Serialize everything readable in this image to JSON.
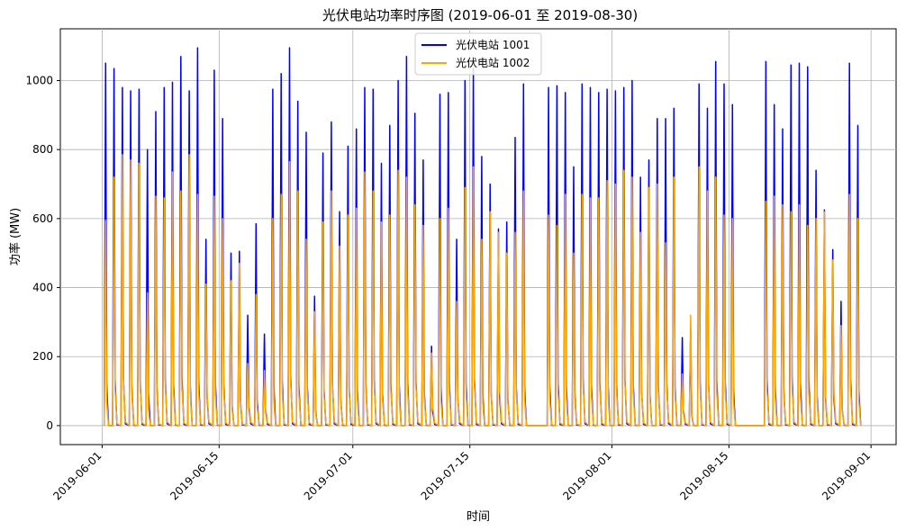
{
  "chart_data": {
    "type": "line",
    "title": "光伏电站功率时序图 (2019-06-01 至 2019-08-30)",
    "xlabel": "时间",
    "ylabel": "功率 (MW)",
    "x_range": [
      "2019-05-27",
      "2019-09-04"
    ],
    "ylim": [
      -55,
      1150
    ],
    "x_ticks": [
      "2019-06-01",
      "2019-06-15",
      "2019-07-01",
      "2019-07-15",
      "2019-08-01",
      "2019-08-15",
      "2019-09-01"
    ],
    "y_ticks": [
      0,
      200,
      400,
      600,
      800,
      1000
    ],
    "grid": true,
    "legend_position": "top-center",
    "series": [
      {
        "name": "光伏电站 1001",
        "color": "#0000ff",
        "daily_peaks": [
          {
            "date": "2019-06-01",
            "peak": 1050
          },
          {
            "date": "2019-06-02",
            "peak": 1035
          },
          {
            "date": "2019-06-03",
            "peak": 980
          },
          {
            "date": "2019-06-04",
            "peak": 970
          },
          {
            "date": "2019-06-05",
            "peak": 975
          },
          {
            "date": "2019-06-06",
            "peak": 800
          },
          {
            "date": "2019-06-07",
            "peak": 910
          },
          {
            "date": "2019-06-08",
            "peak": 980
          },
          {
            "date": "2019-06-09",
            "peak": 995
          },
          {
            "date": "2019-06-10",
            "peak": 1070
          },
          {
            "date": "2019-06-11",
            "peak": 970
          },
          {
            "date": "2019-06-12",
            "peak": 1095
          },
          {
            "date": "2019-06-13",
            "peak": 540
          },
          {
            "date": "2019-06-14",
            "peak": 1030
          },
          {
            "date": "2019-06-15",
            "peak": 890
          },
          {
            "date": "2019-06-16",
            "peak": 500
          },
          {
            "date": "2019-06-17",
            "peak": 505
          },
          {
            "date": "2019-06-18",
            "peak": 320
          },
          {
            "date": "2019-06-19",
            "peak": 585
          },
          {
            "date": "2019-06-20",
            "peak": 265
          },
          {
            "date": "2019-06-21",
            "peak": 975
          },
          {
            "date": "2019-06-22",
            "peak": 1020
          },
          {
            "date": "2019-06-23",
            "peak": 1095
          },
          {
            "date": "2019-06-24",
            "peak": 940
          },
          {
            "date": "2019-06-25",
            "peak": 850
          },
          {
            "date": "2019-06-26",
            "peak": 375
          },
          {
            "date": "2019-06-27",
            "peak": 790
          },
          {
            "date": "2019-06-28",
            "peak": 880
          },
          {
            "date": "2019-06-29",
            "peak": 620
          },
          {
            "date": "2019-06-30",
            "peak": 810
          },
          {
            "date": "2019-07-01",
            "peak": 860
          },
          {
            "date": "2019-07-02",
            "peak": 980
          },
          {
            "date": "2019-07-03",
            "peak": 975
          },
          {
            "date": "2019-07-04",
            "peak": 760
          },
          {
            "date": "2019-07-05",
            "peak": 870
          },
          {
            "date": "2019-07-06",
            "peak": 1000
          },
          {
            "date": "2019-07-07",
            "peak": 1070
          },
          {
            "date": "2019-07-08",
            "peak": 905
          },
          {
            "date": "2019-07-09",
            "peak": 770
          },
          {
            "date": "2019-07-10",
            "peak": 230
          },
          {
            "date": "2019-07-11",
            "peak": 960
          },
          {
            "date": "2019-07-12",
            "peak": 965
          },
          {
            "date": "2019-07-13",
            "peak": 540
          },
          {
            "date": "2019-07-14",
            "peak": 1000
          },
          {
            "date": "2019-07-15",
            "peak": 1035
          },
          {
            "date": "2019-07-16",
            "peak": 780
          },
          {
            "date": "2019-07-17",
            "peak": 700
          },
          {
            "date": "2019-07-18",
            "peak": 570
          },
          {
            "date": "2019-07-19",
            "peak": 590
          },
          {
            "date": "2019-07-20",
            "peak": 835
          },
          {
            "date": "2019-07-21",
            "peak": 990
          },
          {
            "date": "2019-07-22",
            "peak": null
          },
          {
            "date": "2019-07-23",
            "peak": null
          },
          {
            "date": "2019-07-24",
            "peak": 980
          },
          {
            "date": "2019-07-25",
            "peak": 985
          },
          {
            "date": "2019-07-26",
            "peak": 965
          },
          {
            "date": "2019-07-27",
            "peak": 750
          },
          {
            "date": "2019-07-28",
            "peak": 990
          },
          {
            "date": "2019-07-29",
            "peak": 980
          },
          {
            "date": "2019-07-30",
            "peak": 965
          },
          {
            "date": "2019-07-31",
            "peak": 975
          },
          {
            "date": "2019-08-01",
            "peak": 970
          },
          {
            "date": "2019-08-02",
            "peak": 980
          },
          {
            "date": "2019-08-03",
            "peak": 1000
          },
          {
            "date": "2019-08-04",
            "peak": 720
          },
          {
            "date": "2019-08-05",
            "peak": 770
          },
          {
            "date": "2019-08-06",
            "peak": 890
          },
          {
            "date": "2019-08-07",
            "peak": 890
          },
          {
            "date": "2019-08-08",
            "peak": 920
          },
          {
            "date": "2019-08-09",
            "peak": 255
          },
          {
            "date": "2019-08-10",
            "peak": 280
          },
          {
            "date": "2019-08-11",
            "peak": 990
          },
          {
            "date": "2019-08-12",
            "peak": 920
          },
          {
            "date": "2019-08-13",
            "peak": 1055
          },
          {
            "date": "2019-08-14",
            "peak": 990
          },
          {
            "date": "2019-08-15",
            "peak": 930
          },
          {
            "date": "2019-08-16",
            "peak": null
          },
          {
            "date": "2019-08-17",
            "peak": null
          },
          {
            "date": "2019-08-18",
            "peak": null
          },
          {
            "date": "2019-08-19",
            "peak": 1055
          },
          {
            "date": "2019-08-20",
            "peak": 930
          },
          {
            "date": "2019-08-21",
            "peak": 860
          },
          {
            "date": "2019-08-22",
            "peak": 1045
          },
          {
            "date": "2019-08-23",
            "peak": 1050
          },
          {
            "date": "2019-08-24",
            "peak": 1040
          },
          {
            "date": "2019-08-25",
            "peak": 740
          },
          {
            "date": "2019-08-26",
            "peak": 625
          },
          {
            "date": "2019-08-27",
            "peak": 510
          },
          {
            "date": "2019-08-28",
            "peak": 360
          },
          {
            "date": "2019-08-29",
            "peak": 1050
          },
          {
            "date": "2019-08-30",
            "peak": 870
          }
        ]
      },
      {
        "name": "光伏电站 1002",
        "color": "#ffa500",
        "daily_peaks": [
          {
            "date": "2019-06-01",
            "peak": 595
          },
          {
            "date": "2019-06-02",
            "peak": 720
          },
          {
            "date": "2019-06-03",
            "peak": 785
          },
          {
            "date": "2019-06-04",
            "peak": 770
          },
          {
            "date": "2019-06-05",
            "peak": 760
          },
          {
            "date": "2019-06-06",
            "peak": 385
          },
          {
            "date": "2019-06-07",
            "peak": 665
          },
          {
            "date": "2019-06-08",
            "peak": 660
          },
          {
            "date": "2019-06-09",
            "peak": 735
          },
          {
            "date": "2019-06-10",
            "peak": 680
          },
          {
            "date": "2019-06-11",
            "peak": 785
          },
          {
            "date": "2019-06-12",
            "peak": 670
          },
          {
            "date": "2019-06-13",
            "peak": 410
          },
          {
            "date": "2019-06-14",
            "peak": 665
          },
          {
            "date": "2019-06-15",
            "peak": 600
          },
          {
            "date": "2019-06-16",
            "peak": 420
          },
          {
            "date": "2019-06-17",
            "peak": 470
          },
          {
            "date": "2019-06-18",
            "peak": 180
          },
          {
            "date": "2019-06-19",
            "peak": 380
          },
          {
            "date": "2019-06-20",
            "peak": 160
          },
          {
            "date": "2019-06-21",
            "peak": 600
          },
          {
            "date": "2019-06-22",
            "peak": 670
          },
          {
            "date": "2019-06-23",
            "peak": 765
          },
          {
            "date": "2019-06-24",
            "peak": 680
          },
          {
            "date": "2019-06-25",
            "peak": 540
          },
          {
            "date": "2019-06-26",
            "peak": 330
          },
          {
            "date": "2019-06-27",
            "peak": 590
          },
          {
            "date": "2019-06-28",
            "peak": 680
          },
          {
            "date": "2019-06-29",
            "peak": 520
          },
          {
            "date": "2019-06-30",
            "peak": 610
          },
          {
            "date": "2019-07-01",
            "peak": 630
          },
          {
            "date": "2019-07-02",
            "peak": 735
          },
          {
            "date": "2019-07-03",
            "peak": 680
          },
          {
            "date": "2019-07-04",
            "peak": 590
          },
          {
            "date": "2019-07-05",
            "peak": 610
          },
          {
            "date": "2019-07-06",
            "peak": 740
          },
          {
            "date": "2019-07-07",
            "peak": 720
          },
          {
            "date": "2019-07-08",
            "peak": 640
          },
          {
            "date": "2019-07-09",
            "peak": 580
          },
          {
            "date": "2019-07-10",
            "peak": 210
          },
          {
            "date": "2019-07-11",
            "peak": 600
          },
          {
            "date": "2019-07-12",
            "peak": 630
          },
          {
            "date": "2019-07-13",
            "peak": 360
          },
          {
            "date": "2019-07-14",
            "peak": 690
          },
          {
            "date": "2019-07-15",
            "peak": 750
          },
          {
            "date": "2019-07-16",
            "peak": 540
          },
          {
            "date": "2019-07-17",
            "peak": 620
          },
          {
            "date": "2019-07-18",
            "peak": 560
          },
          {
            "date": "2019-07-19",
            "peak": 500
          },
          {
            "date": "2019-07-20",
            "peak": 560
          },
          {
            "date": "2019-07-21",
            "peak": 680
          },
          {
            "date": "2019-07-22",
            "peak": null
          },
          {
            "date": "2019-07-23",
            "peak": null
          },
          {
            "date": "2019-07-24",
            "peak": 610
          },
          {
            "date": "2019-07-25",
            "peak": 580
          },
          {
            "date": "2019-07-26",
            "peak": 670
          },
          {
            "date": "2019-07-27",
            "peak": 500
          },
          {
            "date": "2019-07-28",
            "peak": 670
          },
          {
            "date": "2019-07-29",
            "peak": 660
          },
          {
            "date": "2019-07-30",
            "peak": 660
          },
          {
            "date": "2019-07-31",
            "peak": 710
          },
          {
            "date": "2019-08-01",
            "peak": 700
          },
          {
            "date": "2019-08-02",
            "peak": 740
          },
          {
            "date": "2019-08-03",
            "peak": 720
          },
          {
            "date": "2019-08-04",
            "peak": 560
          },
          {
            "date": "2019-08-05",
            "peak": 690
          },
          {
            "date": "2019-08-06",
            "peak": 700
          },
          {
            "date": "2019-08-07",
            "peak": 530
          },
          {
            "date": "2019-08-08",
            "peak": 720
          },
          {
            "date": "2019-08-09",
            "peak": 150
          },
          {
            "date": "2019-08-10",
            "peak": 320
          },
          {
            "date": "2019-08-11",
            "peak": 750
          },
          {
            "date": "2019-08-12",
            "peak": 680
          },
          {
            "date": "2019-08-13",
            "peak": 720
          },
          {
            "date": "2019-08-14",
            "peak": 610
          },
          {
            "date": "2019-08-15",
            "peak": 600
          },
          {
            "date": "2019-08-16",
            "peak": null
          },
          {
            "date": "2019-08-17",
            "peak": null
          },
          {
            "date": "2019-08-18",
            "peak": null
          },
          {
            "date": "2019-08-19",
            "peak": 650
          },
          {
            "date": "2019-08-20",
            "peak": 665
          },
          {
            "date": "2019-08-21",
            "peak": 640
          },
          {
            "date": "2019-08-22",
            "peak": 620
          },
          {
            "date": "2019-08-23",
            "peak": 640
          },
          {
            "date": "2019-08-24",
            "peak": 580
          },
          {
            "date": "2019-08-25",
            "peak": 600
          },
          {
            "date": "2019-08-26",
            "peak": 620
          },
          {
            "date": "2019-08-27",
            "peak": 480
          },
          {
            "date": "2019-08-28",
            "peak": 290
          },
          {
            "date": "2019-08-29",
            "peak": 670
          },
          {
            "date": "2019-08-30",
            "peak": 600
          }
        ]
      }
    ]
  }
}
